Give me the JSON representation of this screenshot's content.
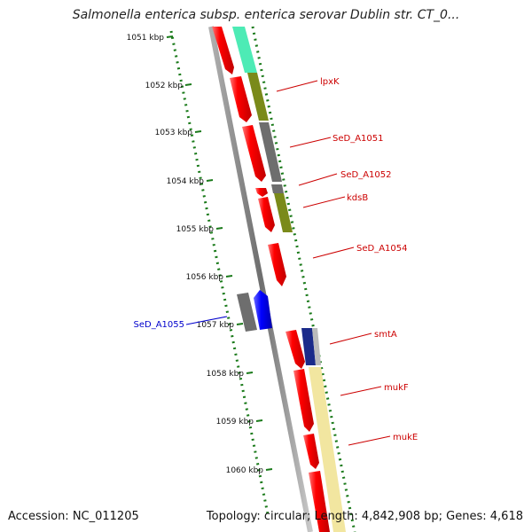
{
  "title": "Salmonella enterica subsp. enterica serovar Dublin str. CT_0...",
  "footer": {
    "accession": "Accession: NC_011205",
    "summary": "Topology: circular; Length: 4,842,908 bp; Genes: 4,618"
  },
  "kbp_ticks": [
    "1051 kbp",
    "1052 kbp",
    "1053 kbp",
    "1054 kbp",
    "1055 kbp",
    "1056 kbp",
    "1057 kbp",
    "1058 kbp",
    "1059 kbp",
    "1060 kbp"
  ],
  "gene_labels": [
    {
      "text": "lpxK",
      "color": "#cc0000"
    },
    {
      "text": "SeD_A1051",
      "color": "#cc0000"
    },
    {
      "text": "SeD_A1052",
      "color": "#cc0000"
    },
    {
      "text": "kdsB",
      "color": "#cc0000"
    },
    {
      "text": "SeD_A1054",
      "color": "#cc0000"
    },
    {
      "text": "smtA",
      "color": "#cc0000"
    },
    {
      "text": "mukF",
      "color": "#cc0000"
    },
    {
      "text": "mukE",
      "color": "#cc0000"
    },
    {
      "text": "SeD_A1055",
      "color": "#0000cc"
    }
  ],
  "colors": {
    "cds": "#ff0000",
    "blue_gene": "#0000ff",
    "cog_green": "#2ee8a8",
    "cog_olive": "#7a8a1a",
    "cog_gray": "#707070",
    "cog_yellow": "#f2e6a0",
    "cog_navy": "#1a2a8a",
    "tick_green": "#1a7a1a"
  }
}
